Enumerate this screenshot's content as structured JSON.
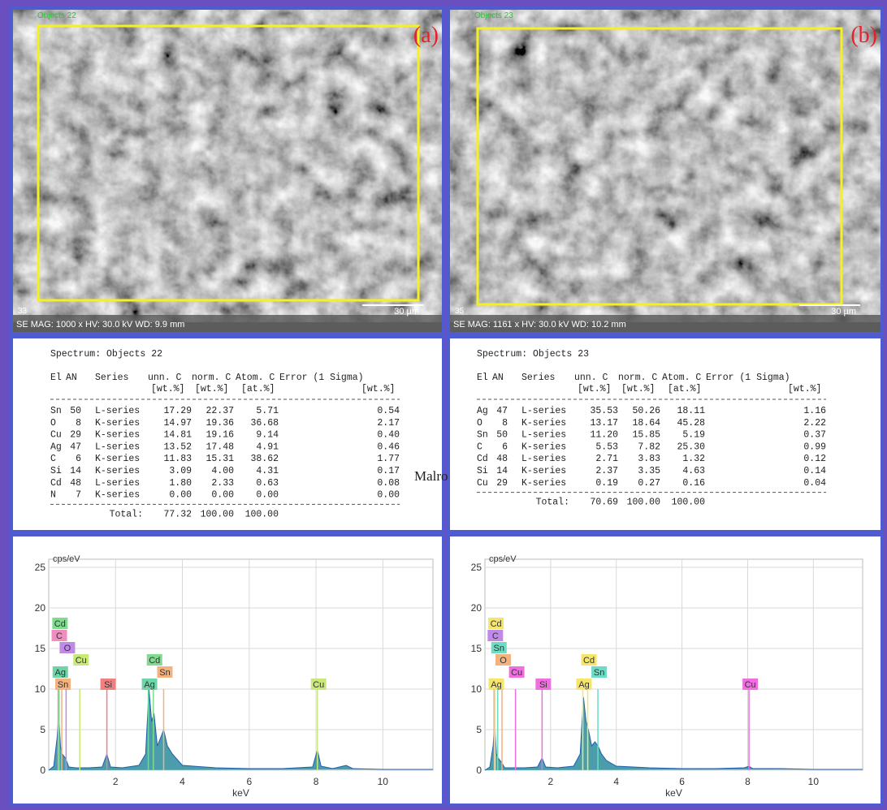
{
  "images": [
    {
      "objects_label": "Objects 22",
      "panel_label": "(a)",
      "number": "33",
      "footer": "SE MAG: 1000 x HV: 30.0 kV WD: 9.9 mm",
      "scale": "30 µm"
    },
    {
      "objects_label": "Objects 23",
      "panel_label": "(b)",
      "number": "35",
      "footer": "SE MAG: 1161 x HV: 30.0 kV WD: 10.2 mm",
      "scale": "30 µm"
    }
  ],
  "tables": [
    {
      "title": "Spectrum: Objects 22",
      "columns": [
        "El",
        "AN",
        "Series",
        "unn. C",
        "norm. C",
        "Atom. C",
        "Error (1 Sigma)"
      ],
      "units": [
        "[wt.%]",
        "[wt.%]",
        "[at.%]",
        "[wt.%]"
      ],
      "rows": [
        [
          "Sn",
          "50",
          "L-series",
          "17.29",
          "22.37",
          "5.71",
          "0.54"
        ],
        [
          "O",
          "8",
          "K-series",
          "14.97",
          "19.36",
          "36.68",
          "2.17"
        ],
        [
          "Cu",
          "29",
          "K-series",
          "14.81",
          "19.16",
          "9.14",
          "0.40"
        ],
        [
          "Ag",
          "47",
          "L-series",
          "13.52",
          "17.48",
          "4.91",
          "0.46"
        ],
        [
          "C",
          "6",
          "K-series",
          "11.83",
          "15.31",
          "38.62",
          "1.77"
        ],
        [
          "Si",
          "14",
          "K-series",
          "3.09",
          "4.00",
          "4.31",
          "0.17"
        ],
        [
          "Cd",
          "48",
          "L-series",
          "1.80",
          "2.33",
          "0.63",
          "0.08"
        ],
        [
          "N",
          "7",
          "K-series",
          "0.00",
          "0.00",
          "0.00",
          "0.00"
        ]
      ],
      "total_label": "Total:",
      "total": [
        "77.32",
        "100.00",
        "100.00"
      ]
    },
    {
      "title": "Spectrum: Objects 23",
      "columns": [
        "El",
        "AN",
        "Series",
        "unn. C",
        "norm. C",
        "Atom. C",
        "Error (1 Sigma)"
      ],
      "units": [
        "[wt.%]",
        "[wt.%]",
        "[at.%]",
        "[wt.%]"
      ],
      "rows": [
        [
          "Ag",
          "47",
          "L-series",
          "35.53",
          "50.26",
          "18.11",
          "1.16"
        ],
        [
          "O",
          "8",
          "K-series",
          "13.17",
          "18.64",
          "45.28",
          "2.22"
        ],
        [
          "Sn",
          "50",
          "L-series",
          "11.20",
          "15.85",
          "5.19",
          "0.37"
        ],
        [
          "C",
          "6",
          "K-series",
          "5.53",
          "7.82",
          "25.30",
          "0.99"
        ],
        [
          "Cd",
          "48",
          "L-series",
          "2.71",
          "3.83",
          "1.32",
          "0.12"
        ],
        [
          "Si",
          "14",
          "K-series",
          "2.37",
          "3.35",
          "4.63",
          "0.14"
        ],
        [
          "Cu",
          "29",
          "K-series",
          "0.19",
          "0.27",
          "0.16",
          "0.04"
        ]
      ],
      "total_label": "Total:",
      "total": [
        "70.69",
        "100.00",
        "100.00"
      ]
    }
  ],
  "stray_text": "Malro",
  "chart_data": [
    {
      "type": "area",
      "y_label": "cps/eV",
      "x_label": "keV",
      "xlim": [
        0,
        11.5
      ],
      "ylim": [
        0,
        26
      ],
      "xticks": [
        2,
        4,
        6,
        8,
        10
      ],
      "yticks": [
        0,
        5,
        10,
        15,
        20,
        25
      ],
      "grid": true,
      "color": "#2b8c9c",
      "x": [
        0,
        0.15,
        0.25,
        0.3,
        0.35,
        0.4,
        0.5,
        0.6,
        0.8,
        1.2,
        1.6,
        1.74,
        1.85,
        2.2,
        2.7,
        2.9,
        3.0,
        3.08,
        3.15,
        3.25,
        3.35,
        3.44,
        3.55,
        3.7,
        4.0,
        5,
        6,
        7,
        7.9,
        8.04,
        8.15,
        8.5,
        8.9,
        9.1,
        10,
        11.5
      ],
      "values": [
        0,
        0.5,
        4,
        7,
        3,
        2,
        1.5,
        0.4,
        0.3,
        0.3,
        0.4,
        2,
        0.4,
        0.3,
        0.6,
        2,
        10,
        6,
        7,
        3,
        4,
        5,
        3,
        2,
        0.6,
        0.3,
        0.2,
        0.2,
        0.4,
        2.5,
        0.5,
        0.2,
        0.6,
        0.2,
        0.1,
        0.1
      ],
      "lines": [
        {
          "element": "Sn",
          "energy": 0.39,
          "color": "#f3b27e"
        },
        {
          "element": "Ag",
          "energy": 0.31,
          "color": "#6cd6a8"
        },
        {
          "element": "Cu",
          "energy": 0.93,
          "color": "#c9e87a"
        },
        {
          "element": "O",
          "energy": 0.52,
          "color": "#c08ae8"
        },
        {
          "element": "C",
          "energy": 0.28,
          "color": "#f08cc0"
        },
        {
          "element": "Cd",
          "energy": 0.3,
          "color": "#7fdc8f"
        },
        {
          "element": "Si",
          "energy": 1.74,
          "color": "#f08080"
        },
        {
          "element": "Ag",
          "energy": 2.98,
          "color": "#6cd6a8"
        },
        {
          "element": "Sn",
          "energy": 3.44,
          "color": "#f3b27e"
        },
        {
          "element": "Cd",
          "energy": 3.13,
          "color": "#7fdc8f"
        },
        {
          "element": "Cu",
          "energy": 8.04,
          "color": "#c9e87a"
        }
      ]
    },
    {
      "type": "area",
      "y_label": "cps/eV",
      "x_label": "keV",
      "xlim": [
        0,
        11.5
      ],
      "ylim": [
        0,
        26
      ],
      "xticks": [
        2,
        4,
        6,
        8,
        10
      ],
      "yticks": [
        0,
        5,
        10,
        15,
        20,
        25
      ],
      "grid": true,
      "color": "#2b8c9c",
      "x": [
        0,
        0.15,
        0.25,
        0.3,
        0.35,
        0.4,
        0.5,
        0.6,
        0.8,
        1.2,
        1.6,
        1.74,
        1.85,
        2.2,
        2.7,
        2.9,
        3.0,
        3.08,
        3.15,
        3.25,
        3.35,
        3.44,
        3.55,
        3.7,
        4.0,
        5,
        6,
        7,
        7.9,
        8.04,
        8.15,
        9,
        10,
        11.5
      ],
      "values": [
        0,
        0.4,
        3,
        6,
        2,
        1.5,
        1,
        0.3,
        0.3,
        0.3,
        0.4,
        1.5,
        0.4,
        0.3,
        0.5,
        2,
        9,
        6,
        5,
        3,
        3.5,
        3,
        2,
        1.2,
        0.5,
        0.3,
        0.2,
        0.2,
        0.3,
        0.5,
        0.2,
        0.2,
        0.1,
        0.1
      ],
      "lines": [
        {
          "element": "Ag",
          "energy": 0.31,
          "color": "#f5e56b"
        },
        {
          "element": "Cu",
          "energy": 0.93,
          "color": "#f06ee0"
        },
        {
          "element": "O",
          "energy": 0.52,
          "color": "#f3b27e"
        },
        {
          "element": "Sn",
          "energy": 0.39,
          "color": "#6cdcc4"
        },
        {
          "element": "C",
          "energy": 0.28,
          "color": "#c08ae8"
        },
        {
          "element": "Cd",
          "energy": 0.3,
          "color": "#f5e56b"
        },
        {
          "element": "Si",
          "energy": 1.74,
          "color": "#f06ee0"
        },
        {
          "element": "Ag",
          "energy": 2.98,
          "color": "#f5e56b"
        },
        {
          "element": "Sn",
          "energy": 3.44,
          "color": "#6cdcc4"
        },
        {
          "element": "Cd",
          "energy": 3.13,
          "color": "#f5e56b"
        },
        {
          "element": "Cu",
          "energy": 8.04,
          "color": "#f06ee0"
        }
      ]
    }
  ]
}
